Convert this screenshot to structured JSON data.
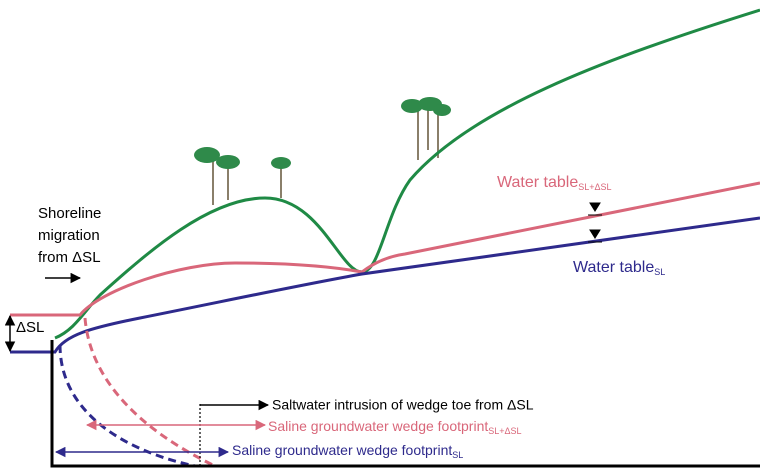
{
  "shoreline_label": {
    "lines": [
      "Shoreline",
      "migration",
      "from ΔSL"
    ]
  },
  "delta_sl_label": "ΔSL",
  "water_table_future": {
    "text": "Water table",
    "subscript": "SL+ΔSL"
  },
  "water_table_current": {
    "text": "Water table",
    "subscript": "SL"
  },
  "saltwater_intrusion_label": "Saltwater intrusion of wedge toe from ΔSL",
  "footprint_future": {
    "text": "Saline groundwater wedge footprint",
    "subscript": "SL+ΔSL"
  },
  "footprint_current": {
    "text": "Saline groundwater wedge footprint",
    "subscript": "SL"
  }
}
